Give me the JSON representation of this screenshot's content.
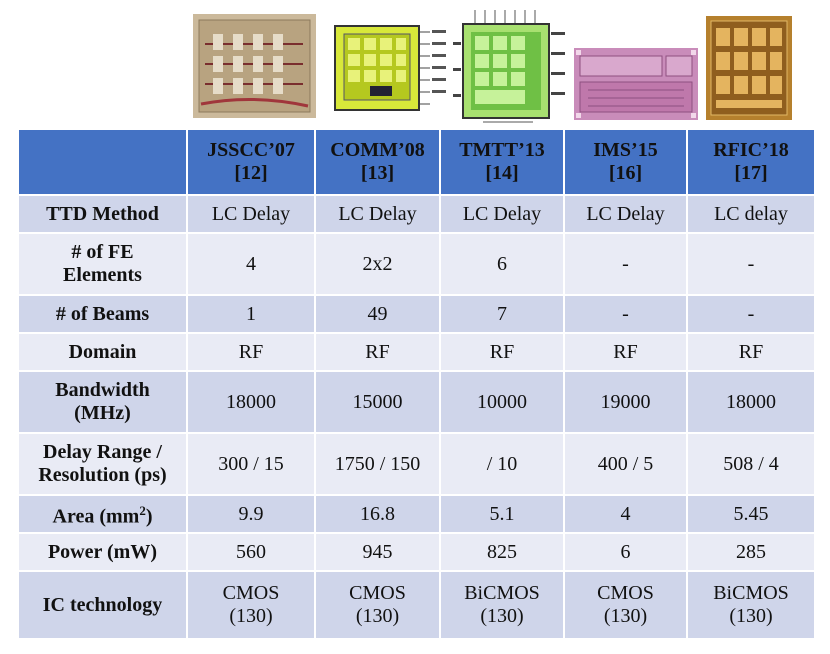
{
  "columns": [
    {
      "name": "JSSCC’07",
      "ref": "[12]"
    },
    {
      "name": "COMM’08",
      "ref": "[13]"
    },
    {
      "name": "TMTT’13",
      "ref": "[14]"
    },
    {
      "name": "IMS’15",
      "ref": "[16]"
    },
    {
      "name": "RFIC’18",
      "ref": "[17]"
    }
  ],
  "rows": {
    "ttd_method": {
      "label": "TTD Method",
      "values": [
        "LC Delay",
        "LC Delay",
        "LC Delay",
        "LC Delay",
        "LC delay"
      ]
    },
    "fe_elements": {
      "label_line1": "# of FE",
      "label_line2": "Elements",
      "values": [
        "4",
        "2x2",
        "6",
        "-",
        "-"
      ]
    },
    "beams": {
      "label": "# of Beams",
      "values": [
        "1",
        "49",
        "7",
        "-",
        "-"
      ]
    },
    "domain": {
      "label": "Domain",
      "values": [
        "RF",
        "RF",
        "RF",
        "RF",
        "RF"
      ]
    },
    "bandwidth": {
      "label_line1": "Bandwidth",
      "label_line2": "(MHz)",
      "values": [
        "18000",
        "15000",
        "10000",
        "19000",
        "18000"
      ]
    },
    "delay": {
      "label_line1": "Delay Range /",
      "label_line2": "Resolution (ps)",
      "values": [
        "300 / 15",
        "1750 / 150",
        "/ 10",
        "400 / 5",
        "508 / 4"
      ]
    },
    "area": {
      "label_main": "Area (mm",
      "label_sup": "2",
      "label_end": ")",
      "values": [
        "9.9",
        "16.8",
        "5.1",
        "4",
        "5.45"
      ]
    },
    "power": {
      "label": "Power (mW)",
      "values": [
        "560",
        "945",
        "825",
        "6",
        "285"
      ]
    },
    "ic": {
      "label": "IC technology",
      "values": [
        {
          "tech": "CMOS",
          "node": "(130)"
        },
        {
          "tech": "CMOS",
          "node": "(130)"
        },
        {
          "tech": "BiCMOS",
          "node": "(130)"
        },
        {
          "tech": "CMOS",
          "node": "(130)"
        },
        {
          "tech": "BiCMOS",
          "node": "(130)"
        }
      ]
    }
  },
  "colors": {
    "header": "#4472c4",
    "row_dark": "#cfd5ea",
    "row_light": "#e9ebf5"
  }
}
